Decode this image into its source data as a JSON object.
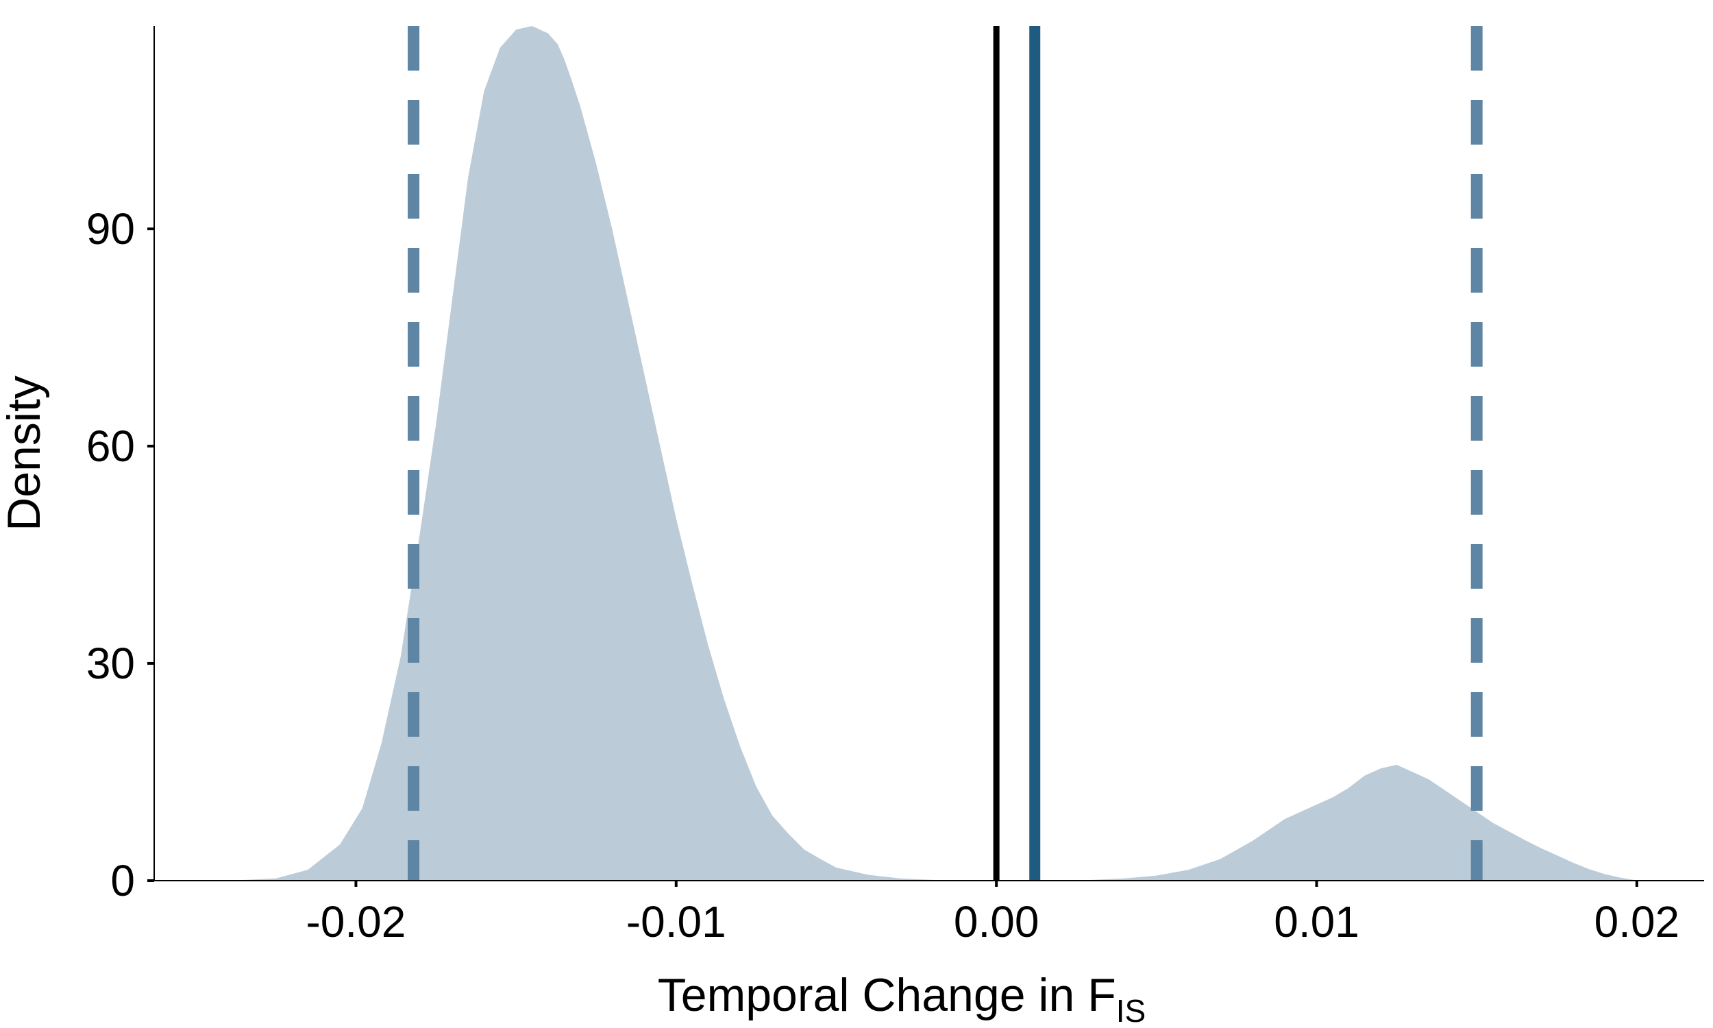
{
  "chart_data": {
    "type": "area",
    "title": "",
    "xlabel": "Temporal Change in F",
    "xlabel_subscript": "IS",
    "ylabel": "Density",
    "xlim": [
      -0.0263,
      0.0221
    ],
    "ylim": [
      0,
      118
    ],
    "x_ticks": [
      -0.02,
      -0.01,
      0.0,
      0.01,
      0.02
    ],
    "x_tick_labels": [
      "-0.02",
      "-0.01",
      "0.00",
      "0.01",
      "0.02"
    ],
    "y_ticks": [
      0,
      30,
      60,
      90
    ],
    "y_tick_labels": [
      "0",
      "30",
      "60",
      "90"
    ],
    "grid": false,
    "series": [
      {
        "name": "density",
        "color": "#bccbd8",
        "x": [
          -0.024,
          -0.0225,
          -0.0215,
          -0.0205,
          -0.0198,
          -0.0192,
          -0.0186,
          -0.018,
          -0.0175,
          -0.017,
          -0.0165,
          -0.016,
          -0.0155,
          -0.015,
          -0.0145,
          -0.014,
          -0.0137,
          -0.0135,
          -0.0133,
          -0.013,
          -0.0125,
          -0.012,
          -0.0115,
          -0.011,
          -0.0105,
          -0.01,
          -0.0095,
          -0.009,
          -0.0085,
          -0.008,
          -0.0075,
          -0.007,
          -0.0065,
          -0.006,
          -0.0055,
          -0.005,
          -0.004,
          -0.003,
          -0.002,
          -0.001,
          0.0,
          0.001,
          0.002,
          0.003,
          0.004,
          0.005,
          0.006,
          0.007,
          0.008,
          0.009,
          0.01,
          0.0105,
          0.011,
          0.0115,
          0.012,
          0.0125,
          0.013,
          0.0135,
          0.014,
          0.0145,
          0.015,
          0.0155,
          0.016,
          0.0165,
          0.017,
          0.0175,
          0.018,
          0.0185,
          0.019,
          0.0195,
          0.0199
        ],
        "values": [
          0,
          0.3,
          1.5,
          5,
          10,
          19,
          31,
          48,
          63,
          80,
          97,
          109,
          115,
          117.5,
          118,
          117,
          115.5,
          113.5,
          111,
          107,
          99,
          90,
          80,
          70,
          60,
          50,
          41,
          32.5,
          25,
          18.5,
          13,
          9,
          6.5,
          4.3,
          3,
          1.8,
          0.8,
          0.3,
          0.1,
          0,
          0,
          0,
          0,
          0.1,
          0.3,
          0.7,
          1.5,
          3,
          5.5,
          8.5,
          10.5,
          11.5,
          12.8,
          14.5,
          15.5,
          16,
          15,
          14,
          12.5,
          11,
          9.5,
          8,
          6.8,
          5.6,
          4.5,
          3.5,
          2.5,
          1.6,
          0.9,
          0.4,
          0.1
        ]
      }
    ],
    "reference_lines": [
      {
        "name": "zero-line",
        "x": 0.0,
        "style": "solid",
        "color": "#000000"
      },
      {
        "name": "observed-change",
        "x": 0.0012,
        "style": "solid",
        "color": "#1f5a80"
      },
      {
        "name": "lower-bound",
        "x": -0.0182,
        "style": "dashed",
        "color": "#5e85a3"
      },
      {
        "name": "upper-bound",
        "x": 0.015,
        "style": "dashed",
        "color": "#5e85a3"
      }
    ]
  }
}
